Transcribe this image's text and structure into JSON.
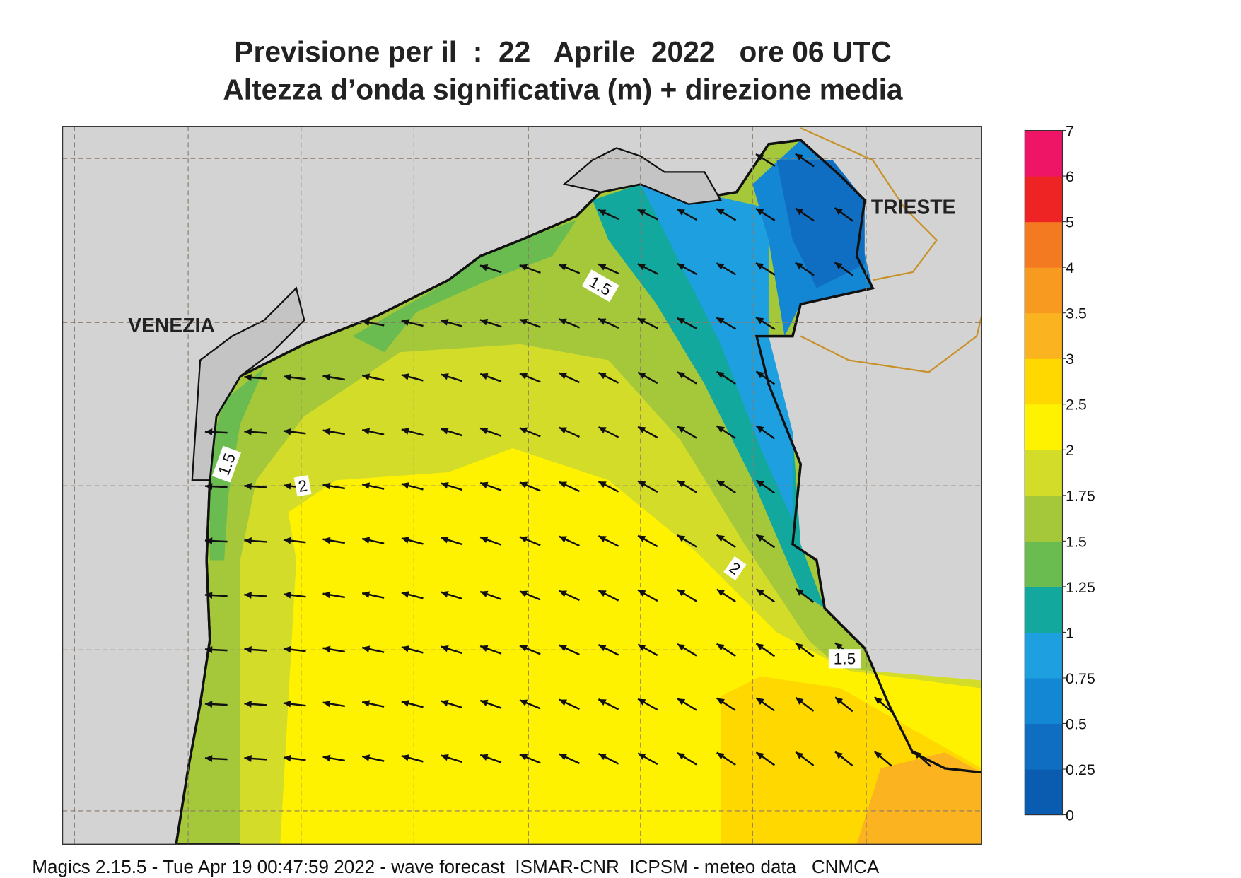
{
  "title": [
    "Previsione per il  :  22   Aprile  2022   ore 06 UTC",
    "Altezza d’onda significativa (m) + direzione media"
  ],
  "places": [
    "VENEZIA",
    "TRIESTE"
  ],
  "contour_labels": [
    "1.5",
    "1.5",
    "2",
    "2",
    "1.5"
  ],
  "colorbar": {
    "levels": [
      0,
      0.25,
      0.5,
      0.75,
      1,
      1.25,
      1.5,
      1.75,
      2,
      2.5,
      3,
      3.5,
      4,
      5,
      6,
      7
    ],
    "colors": [
      "#0a5cb0",
      "#0f6ec2",
      "#1487d4",
      "#1e9fe0",
      "#12a89e",
      "#6abb50",
      "#a5c83a",
      "#d4dc2a",
      "#fff200",
      "#ffd800",
      "#fbb420",
      "#f99a20",
      "#f47a22",
      "#ee2424",
      "#ee1466"
    ]
  },
  "footer": "Magics 2.15.5 - Tue Apr 19 00:47:59 2022 - wave forecast  ISMAR-CNR  ICPSM - meteo data   CNMCA"
}
